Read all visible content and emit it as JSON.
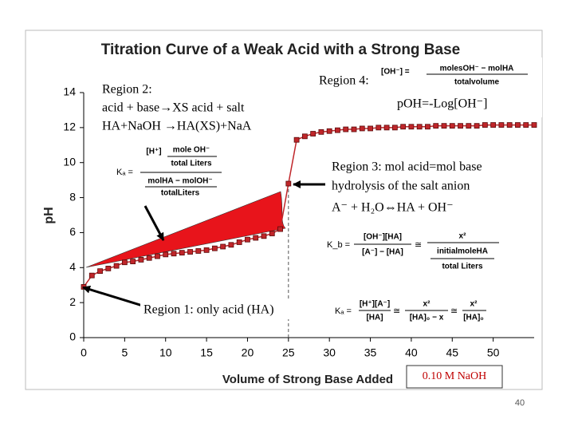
{
  "chart_data": {
    "type": "line",
    "title": "Titration Curve of a Weak Acid with a Strong Base",
    "x_label": "Volume of Strong Base Added",
    "y_label": "pH",
    "x": [
      0,
      1,
      2,
      3,
      4,
      5,
      6,
      7,
      8,
      9,
      10,
      11,
      12,
      13,
      14,
      15,
      16,
      17,
      18,
      19,
      20,
      21,
      22,
      23,
      24,
      25,
      26,
      27,
      28,
      29,
      30,
      31,
      32,
      33,
      34,
      35,
      36,
      37,
      38,
      39,
      40,
      41,
      42,
      43,
      44,
      45,
      46,
      47,
      48,
      49,
      50,
      51,
      52,
      53,
      54,
      55
    ],
    "series": [
      {
        "name": "pH",
        "color": "#c0262a",
        "values": [
          2.9,
          3.55,
          3.8,
          3.95,
          4.1,
          4.3,
          4.35,
          4.45,
          4.55,
          4.65,
          4.75,
          4.8,
          4.85,
          4.9,
          4.95,
          5.0,
          5.1,
          5.2,
          5.3,
          5.45,
          5.6,
          5.7,
          5.8,
          5.95,
          6.2,
          8.8,
          11.3,
          11.5,
          11.65,
          11.75,
          11.8,
          11.85,
          11.9,
          11.9,
          11.95,
          11.95,
          12.0,
          12.0,
          12.0,
          12.05,
          12.05,
          12.05,
          12.05,
          12.1,
          12.1,
          12.1,
          12.1,
          12.1,
          12.1,
          12.15,
          12.15,
          12.15,
          12.15,
          12.15,
          12.15,
          12.15
        ]
      }
    ],
    "xlim": [
      0,
      55
    ],
    "xticks": [
      0,
      5,
      10,
      15,
      20,
      25,
      30,
      35,
      40,
      45,
      50
    ],
    "ylim": [
      0,
      14
    ],
    "yticks": [
      0,
      2,
      4,
      6,
      8,
      10,
      12,
      14
    ],
    "equivalence_x": 25,
    "grid": false
  },
  "annotations": {
    "region2": [
      "Region 2:",
      "acid + base→XS acid + salt",
      "HA+NaOH →HA(XS)+NaA"
    ],
    "region4": [
      "Region 4:",
      "pOH=-Log[OH⁻]"
    ],
    "region3": [
      "Region 3: mol acid=mol base",
      "hydrolysis of the salt anion",
      "A⁻ + H₂O⇔HA + OH⁻"
    ],
    "region1": "Region 1: only acid (HA)",
    "titrant": "0.10 M NaOH",
    "page_number": "40"
  },
  "formulas": {
    "oh": {
      "lhs": "[OH⁻] =",
      "num": "molesOH⁻ − molHA",
      "den": "totalvolume"
    },
    "ka_buffer": {
      "lhs": "Kₐ =",
      "num": [
        "[H⁺]",
        "mole OH⁻",
        "total Liters"
      ],
      "den": [
        "molHA − molOH⁻",
        "totalLiters"
      ]
    },
    "kb": {
      "lhs": "K_b =",
      "num": "[OH⁻][HA]",
      "den": "[A⁻] − [HA]",
      "approx": "≅",
      "num2": "x²",
      "den2": [
        "initialmoleHA",
        "total Liters"
      ]
    },
    "ka_acid": {
      "lhs": "Kₐ =",
      "num": "[H⁺][A⁻]",
      "den": "[HA]",
      "approx": "≅",
      "num2": "x²",
      "den2": "[HA]₀ − x",
      "approx2": "≅",
      "num3": "x²",
      "den3": "[HA]₀"
    }
  }
}
